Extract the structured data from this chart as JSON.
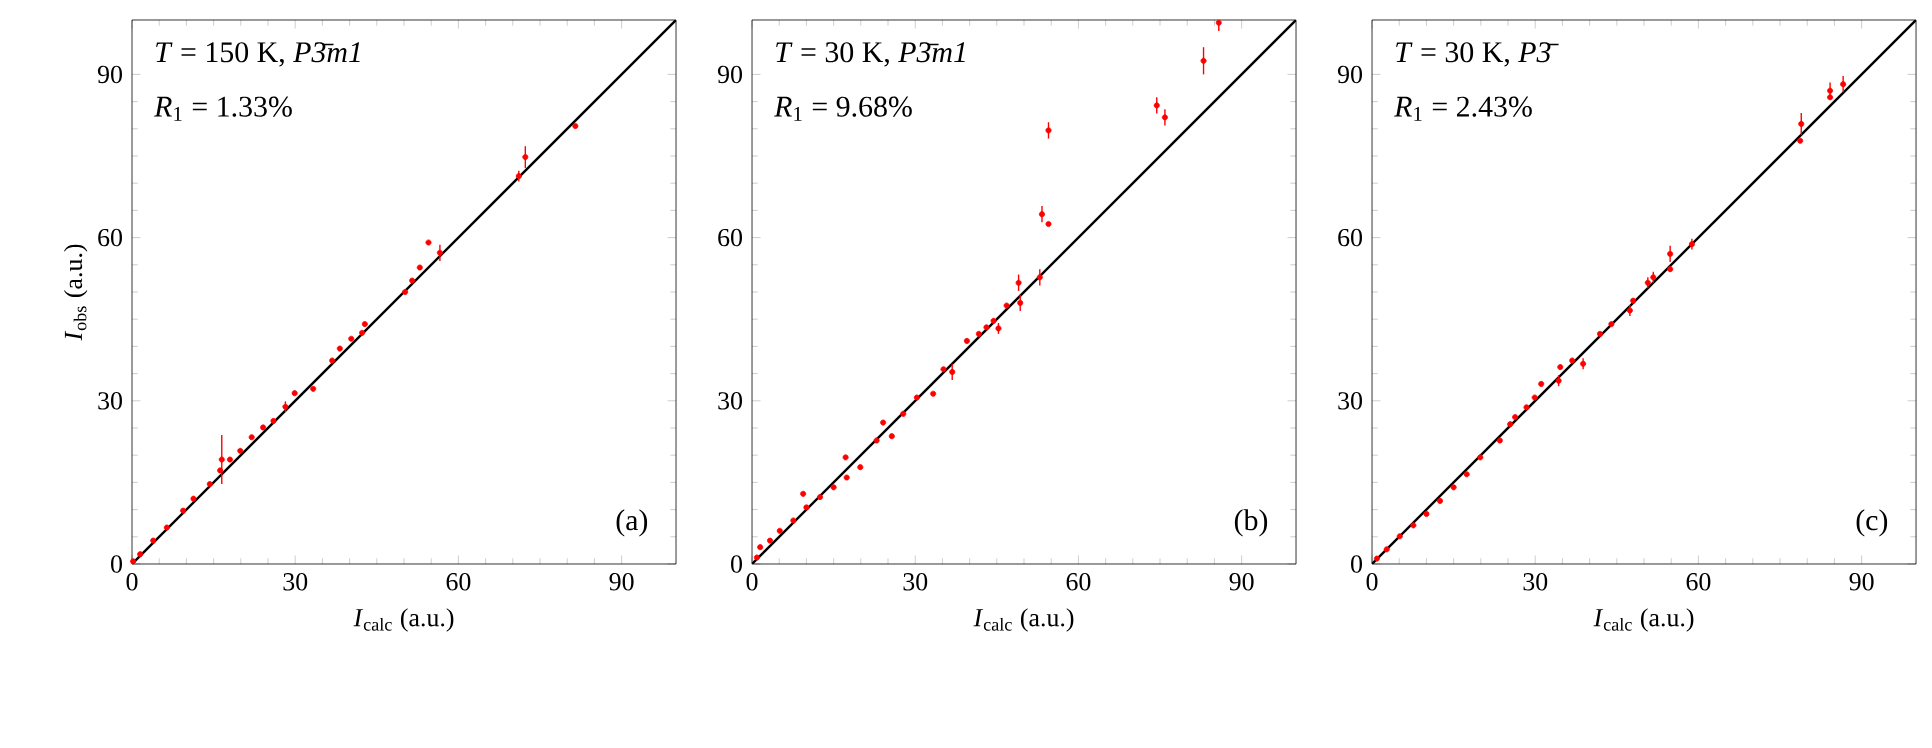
{
  "chart_data": [
    {
      "type": "scatter",
      "xlabel": "*I*$_{calc}$ (a.u.)",
      "ylabel": "*I*$_{obs}$ (a.u.)",
      "xlim": [
        0,
        100
      ],
      "ylim": [
        0,
        100
      ],
      "xticks": [
        0,
        30,
        60,
        90
      ],
      "yticks": [
        0,
        30,
        60,
        90
      ],
      "grid": false,
      "annotations": [
        "*T* = 150 K, *P3̄m1*",
        "*R*$_{1}$ = 1.33%",
        "(a)"
      ],
      "series": [
        {
          "type": "line",
          "marker": "none",
          "color": "#000000",
          "x": [
            0,
            100
          ],
          "values": [
            0,
            100
          ]
        },
        {
          "type": "scatter",
          "marker": "circle",
          "color": "#ff0000",
          "x": [
            0.2,
            1.5,
            3.9,
            6.4,
            9.4,
            11.3,
            14.3,
            16.2,
            16.5,
            18,
            19.9,
            22,
            24.1,
            26,
            28.2,
            29.9,
            33.3,
            36.8,
            38.2,
            40.3,
            42.3,
            42.8,
            50.2,
            51.5,
            52.9,
            54.5,
            56.6,
            71.1,
            72.3,
            81.5
          ],
          "values": [
            0.5,
            1.8,
            4.3,
            6.7,
            9.8,
            12,
            14.7,
            17.2,
            19.2,
            19.2,
            20.8,
            23.3,
            25.1,
            26.3,
            28.9,
            31.4,
            32.2,
            37.4,
            39.6,
            41.4,
            42.5,
            44.1,
            50,
            52.1,
            54.5,
            59.1,
            57.2,
            71.3,
            74.8,
            80.5
          ],
          "errors": [
            null,
            null,
            null,
            null,
            null,
            null,
            null,
            null,
            4.5,
            null,
            null,
            null,
            null,
            null,
            1,
            null,
            null,
            null,
            null,
            null,
            null,
            null,
            null,
            null,
            null,
            null,
            1.5,
            1,
            2,
            null
          ]
        }
      ]
    },
    {
      "type": "scatter",
      "xlabel": "*I*$_{calc}$ (a.u.)",
      "xlim": [
        0,
        100
      ],
      "ylim": [
        0,
        100
      ],
      "xticks": [
        0,
        30,
        60,
        90
      ],
      "yticks": [
        0,
        30,
        60,
        90
      ],
      "grid": false,
      "annotations": [
        "*T* = 30 K, *P3̄m1*",
        "*R*$_{1}$ = 9.68%",
        "(b)"
      ],
      "series": [
        {
          "type": "line",
          "marker": "none",
          "color": "#000000",
          "x": [
            0,
            100
          ],
          "values": [
            0,
            100
          ]
        },
        {
          "type": "scatter",
          "marker": "circle",
          "color": "#ff0000",
          "x": [
            0.9,
            1.5,
            3.3,
            5.1,
            7.6,
            9.4,
            10,
            12.5,
            15,
            17.2,
            17.4,
            19.9,
            22.9,
            24.1,
            25.7,
            27.8,
            30.3,
            33.3,
            35.2,
            36.8,
            39.5,
            41.7,
            43.1,
            44.4,
            45.3,
            46.8,
            49,
            49.3,
            52.9,
            53.3,
            54.5,
            54.5,
            74.4,
            75.9,
            83,
            85.8
          ],
          "values": [
            1.2,
            3.1,
            4.3,
            6.1,
            8,
            12.9,
            10.4,
            12.3,
            14.1,
            19.6,
            15.9,
            17.8,
            22.7,
            26,
            23.5,
            27.6,
            30.6,
            31.3,
            35.8,
            35.3,
            41,
            42.3,
            43.5,
            44.7,
            43.3,
            47.5,
            51.7,
            48,
            52.7,
            64.3,
            62.5,
            79.7,
            84.3,
            82.1,
            92.5,
            99.5
          ],
          "errors": [
            null,
            null,
            null,
            null,
            null,
            null,
            null,
            null,
            null,
            null,
            null,
            null,
            null,
            null,
            null,
            null,
            null,
            null,
            null,
            1.5,
            null,
            null,
            null,
            null,
            1,
            null,
            1.5,
            1.5,
            1.5,
            1.5,
            null,
            1.5,
            1.5,
            1.5,
            2.5,
            1.5
          ]
        }
      ]
    },
    {
      "type": "scatter",
      "xlabel": "*I*$_{calc}$ (a.u.)",
      "xlim": [
        0,
        100
      ],
      "ylim": [
        0,
        100
      ],
      "xticks": [
        0,
        30,
        60,
        90
      ],
      "yticks": [
        0,
        30,
        60,
        90
      ],
      "grid": false,
      "annotations": [
        "*T* = 30 K, *P3̄*",
        "*R*$_{1}$ = 2.43%",
        "(c)"
      ],
      "series": [
        {
          "type": "line",
          "marker": "none",
          "color": "#000000",
          "x": [
            0,
            100
          ],
          "values": [
            0,
            100
          ]
        },
        {
          "type": "scatter",
          "marker": "circle",
          "color": "#ff0000",
          "x": [
            0.9,
            2.7,
            5.1,
            7.6,
            10,
            12.5,
            15,
            17.4,
            19.9,
            23.5,
            25.4,
            26.3,
            28.4,
            29.9,
            31.1,
            34.3,
            34.6,
            36.8,
            38.8,
            41.9,
            44,
            47.4,
            48,
            50.7,
            51.7,
            54.8,
            54.8,
            58.8,
            78.7,
            78.9,
            84.2,
            84.2,
            86.6
          ],
          "values": [
            1,
            2.7,
            5.1,
            7.1,
            9.2,
            11.6,
            14.1,
            16.5,
            19.6,
            22.7,
            25.7,
            27,
            28.8,
            30.6,
            33.1,
            33.7,
            36.2,
            37.4,
            36.8,
            42.3,
            44.1,
            46.6,
            48.4,
            51.7,
            52.7,
            54.2,
            57,
            58.8,
            77.8,
            80.9,
            85.8,
            87,
            88.2
          ],
          "errors": [
            null,
            null,
            null,
            null,
            null,
            null,
            null,
            null,
            null,
            null,
            null,
            null,
            null,
            null,
            null,
            1,
            null,
            null,
            1,
            null,
            null,
            1,
            null,
            1,
            1,
            null,
            1.5,
            1,
            null,
            2,
            null,
            1.5,
            1.5
          ]
        }
      ]
    }
  ]
}
